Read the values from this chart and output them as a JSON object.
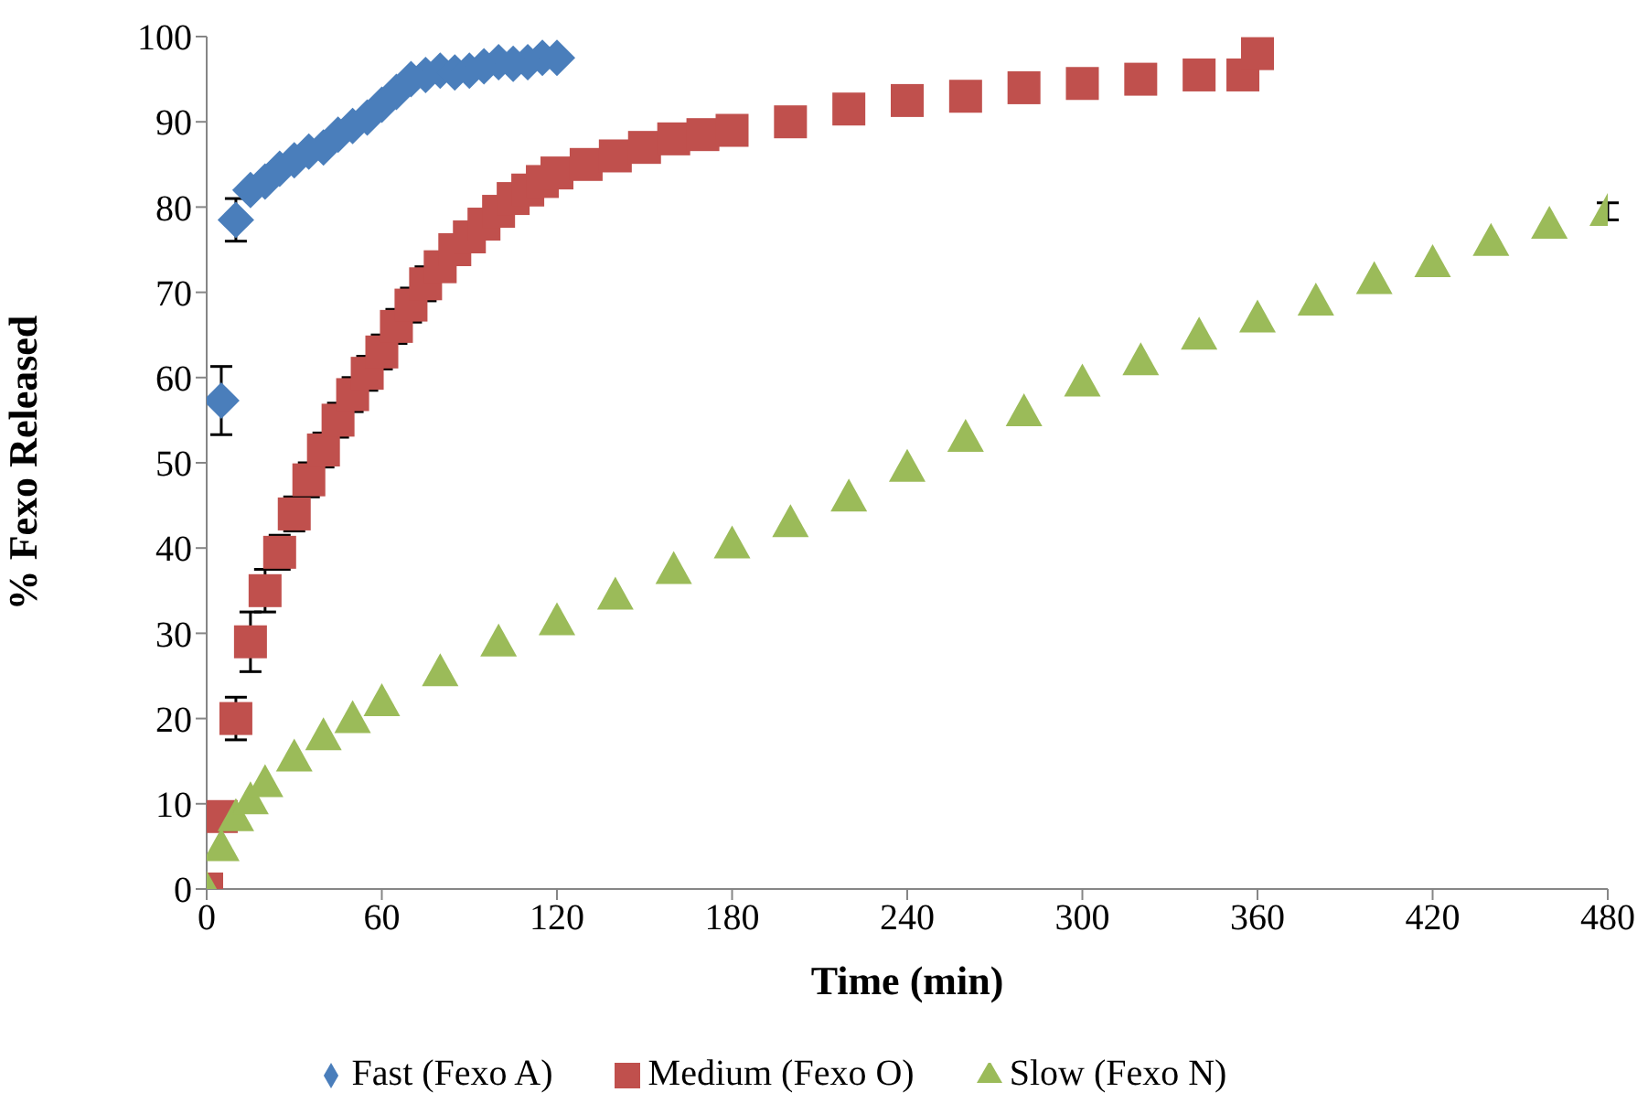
{
  "chart_data": {
    "type": "scatter",
    "xlabel": "Time (min)",
    "ylabel": "% Fexo Released",
    "xlim": [
      0,
      480
    ],
    "xticks": [
      0,
      60,
      120,
      180,
      240,
      300,
      360,
      420,
      480
    ],
    "ylim": [
      0,
      100
    ],
    "yticks": [
      0,
      10,
      20,
      30,
      40,
      50,
      60,
      70,
      80,
      90,
      100
    ],
    "grid": false,
    "legend": "bottom",
    "series": [
      {
        "name": "Fast (Fexo A)",
        "color": "#4a7ebb",
        "marker": "diamond",
        "x": [
          5,
          10,
          15,
          20,
          25,
          30,
          35,
          40,
          45,
          50,
          55,
          60,
          65,
          70,
          75,
          80,
          85,
          90,
          95,
          100,
          105,
          110,
          115,
          120
        ],
        "values": [
          57.3,
          78.5,
          82,
          83,
          84.5,
          85.5,
          86.5,
          87,
          88.5,
          89.5,
          90.5,
          92,
          93.5,
          95,
          95.5,
          96,
          95.8,
          96,
          96.5,
          97,
          96.8,
          97,
          97.5,
          97.5
        ],
        "errors": [
          4,
          2.5,
          null,
          null,
          null,
          null,
          null,
          null,
          null,
          null,
          null,
          null,
          null,
          null,
          null,
          null,
          null,
          null,
          null,
          null,
          null,
          null,
          null,
          null
        ]
      },
      {
        "name": "Medium (Fexo O)",
        "color": "#c0504d",
        "marker": "square",
        "x": [
          0,
          5,
          10,
          15,
          20,
          25,
          30,
          35,
          40,
          45,
          50,
          55,
          60,
          65,
          70,
          75,
          80,
          85,
          90,
          95,
          100,
          105,
          110,
          115,
          120,
          130,
          140,
          150,
          160,
          170,
          180,
          200,
          220,
          240,
          260,
          280,
          300,
          320,
          340,
          355,
          360
        ],
        "values": [
          0,
          8.5,
          20,
          29,
          35,
          39.5,
          44,
          48,
          51.5,
          55,
          58,
          60.5,
          63,
          66,
          68.5,
          71,
          73,
          75,
          76.5,
          78,
          79.5,
          81,
          82,
          83,
          84,
          85,
          86,
          87,
          88,
          88.5,
          89,
          90,
          91.5,
          92.5,
          93,
          94,
          94.5,
          95,
          95.5,
          95.5,
          98
        ],
        "errors": [
          null,
          null,
          2.5,
          3.5,
          2.5,
          2,
          2,
          2,
          2,
          2,
          2,
          2,
          2,
          2,
          2,
          2,
          null,
          null,
          null,
          null,
          null,
          null,
          null,
          null,
          null,
          null,
          null,
          null,
          null,
          null,
          null,
          null,
          null,
          null,
          null,
          null,
          null,
          null,
          null,
          null,
          null
        ]
      },
      {
        "name": "Slow (Fexo N)",
        "color": "#9bbb59",
        "marker": "triangle",
        "x": [
          0,
          5,
          10,
          15,
          20,
          30,
          40,
          50,
          60,
          80,
          100,
          120,
          140,
          160,
          180,
          200,
          220,
          240,
          260,
          280,
          300,
          320,
          340,
          360,
          380,
          400,
          420,
          440,
          460,
          480
        ],
        "values": [
          0,
          5,
          8.5,
          10.5,
          12.5,
          15.5,
          18,
          20,
          22,
          25.5,
          29,
          31.5,
          34.5,
          37.5,
          40.5,
          43,
          46,
          49.5,
          53,
          56,
          59.5,
          62,
          65,
          67,
          69,
          71.5,
          73.5,
          76,
          78,
          79.5
        ],
        "errors": [
          null,
          null,
          null,
          null,
          null,
          null,
          null,
          null,
          null,
          null,
          null,
          null,
          null,
          null,
          null,
          null,
          null,
          null,
          null,
          null,
          null,
          null,
          null,
          null,
          null,
          null,
          null,
          null,
          null,
          1
        ]
      }
    ]
  }
}
